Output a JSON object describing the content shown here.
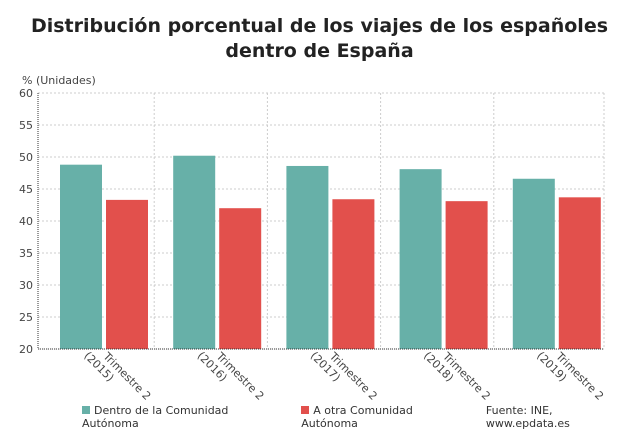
{
  "title": "Distribución porcentual de los viajes de los españoles dentro de España",
  "source": "Fuente: INE, www.epdata.es",
  "chart_data": {
    "type": "bar",
    "title": "Distribución porcentual de los viajes de los españoles dentro de España",
    "ylabel": "% (Unidades)",
    "xlabel": "",
    "ylim": [
      20,
      60
    ],
    "yticks": [
      20,
      25,
      30,
      35,
      40,
      45,
      50,
      55,
      60
    ],
    "grid": true,
    "legend_position": "bottom",
    "categories": [
      "Trimestre 2 (2015)",
      "Trimestre 2 (2016)",
      "Trimestre 2 (2017)",
      "Trimestre 2 (2018)",
      "Trimestre 2 (2019)"
    ],
    "series": [
      {
        "name": "Dentro de la Comunidad Autónoma",
        "color": "#67b0a8",
        "values": [
          48.8,
          50.2,
          48.6,
          48.1,
          46.6
        ]
      },
      {
        "name": "A otra Comunidad Autónoma",
        "color": "#e2504c",
        "values": [
          43.3,
          42.0,
          43.4,
          43.1,
          43.7
        ]
      }
    ]
  }
}
